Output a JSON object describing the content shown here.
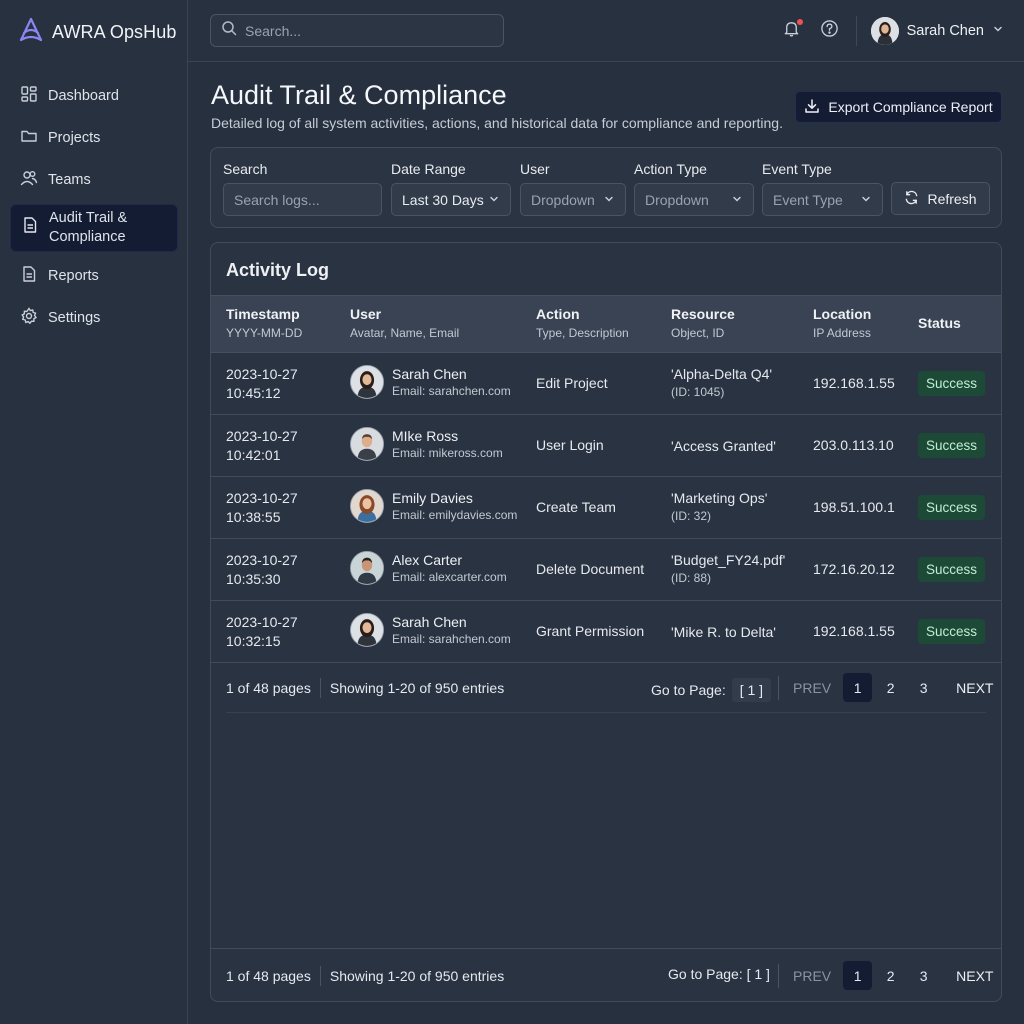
{
  "brand": {
    "name": "AWRA OpsHub"
  },
  "sidebar": {
    "items": [
      {
        "label": "Dashboard",
        "icon": "dashboard-icon"
      },
      {
        "label": "Projects",
        "icon": "folder-icon"
      },
      {
        "label": "Teams",
        "icon": "users-icon"
      },
      {
        "label": "Audit Trail &\nCompliance",
        "icon": "document-icon",
        "active": true
      },
      {
        "label": "Reports",
        "icon": "report-icon"
      },
      {
        "label": "Settings",
        "icon": "gear-icon"
      }
    ]
  },
  "topbar": {
    "search_placeholder": "Search...",
    "user_name": "Sarah Chen"
  },
  "header": {
    "title": "Audit Trail & Compliance",
    "subtitle": "Detailed log of all system activities, actions, and historical data for compliance and reporting.",
    "export_label": "Export Compliance Report"
  },
  "filters": {
    "search_label": "Search",
    "search_placeholder": "Search logs...",
    "date_label": "Date Range",
    "date_value": "Last 30 Days",
    "user_label": "User",
    "user_value": "Dropdown",
    "action_label": "Action Type",
    "action_value": "Dropdown",
    "event_label": "Event Type",
    "event_value": "Event Type",
    "refresh_label": "Refresh"
  },
  "log": {
    "title": "Activity Log",
    "columns": {
      "timestamp": {
        "title": "Timestamp",
        "sub": "YYYY-MM-DD"
      },
      "user": {
        "title": "User",
        "sub": "Avatar, Name, Email"
      },
      "action": {
        "title": "Action",
        "sub": "Type, Description"
      },
      "resource": {
        "title": "Resource",
        "sub": "Object, ID"
      },
      "location": {
        "title": "Location",
        "sub": "IP Address"
      },
      "status": {
        "title": "Status"
      }
    },
    "rows": [
      {
        "date": "2023-10-27",
        "time": "10:45:12",
        "name": "Sarah Chen",
        "email": "Email: sarahchen.com",
        "action": "Edit Project",
        "resource": "'Alpha-Delta Q4'",
        "resource_id": "(ID: 1045)",
        "ip": "192.168.1.55",
        "status": "Success"
      },
      {
        "date": "2023-10-27",
        "time": "10:42:01",
        "name": "MIke Ross",
        "email": "Email: mikeross.com",
        "action": "User Login",
        "resource": "'Access Granted'",
        "resource_id": "",
        "ip": "203.0.113.10",
        "status": "Success"
      },
      {
        "date": "2023-10-27",
        "time": "10:38:55",
        "name": "Emily Davies",
        "email": "Email: emilydavies.com",
        "action": "Create Team",
        "resource": "'Marketing Ops'",
        "resource_id": "(ID: 32)",
        "ip": "198.51.100.1",
        "status": "Success"
      },
      {
        "date": "2023-10-27",
        "time": "10:35:30",
        "name": "Alex Carter",
        "email": "Email: alexcarter.com",
        "action": "Delete Document",
        "resource": "'Budget_FY24.pdf'",
        "resource_id": "(ID: 88)",
        "ip": "172.16.20.12",
        "status": "Success"
      },
      {
        "date": "2023-10-27",
        "time": "10:32:15",
        "name": "Sarah Chen",
        "email": "Email: sarahchen.com",
        "action": "Grant Permission",
        "resource": "'Mike R. to Delta'",
        "resource_id": "",
        "ip": "192.168.1.55",
        "status": "Success"
      }
    ],
    "pager": {
      "pages": "1 of 48 pages",
      "showing": "Showing 1-20 of 950 entries",
      "goto_label": "Go to Page:",
      "goto_value": "[ 1 ]",
      "goto_text_bottom": "Go to Page: [ 1 ]",
      "prev": "PREV",
      "next": "NEXT",
      "page_numbers": [
        "1",
        "2",
        "3"
      ]
    }
  },
  "colors": {
    "background": "#27303f",
    "accent_button": "#141c33",
    "success_badge": "#1c4a36",
    "brand_logo": "#7c7ff0"
  }
}
